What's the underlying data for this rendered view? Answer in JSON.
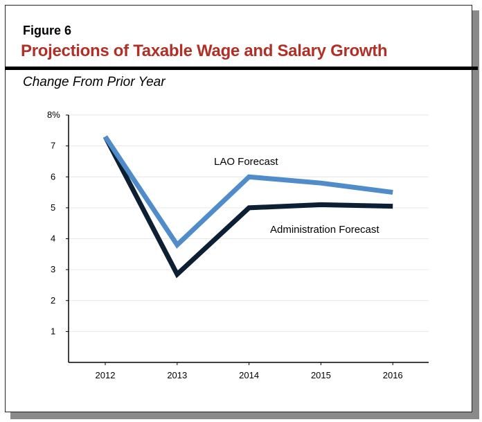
{
  "figure_label": "Figure 6",
  "title": "Projections of Taxable Wage and Salary Growth",
  "subtitle": "Change From Prior Year",
  "chart_data": {
    "type": "line",
    "title": "Projections of Taxable Wage and Salary Growth",
    "subtitle": "Change From Prior Year",
    "xlabel": "",
    "ylabel": "",
    "categories": [
      "2012",
      "2013",
      "2014",
      "2015",
      "2016"
    ],
    "ylim": [
      0,
      8
    ],
    "yticks": [
      "1",
      "2",
      "3",
      "4",
      "5",
      "6",
      "7",
      "8%"
    ],
    "grid": true,
    "series": [
      {
        "name": "LAO Forecast",
        "color": "#4f8cc9",
        "values": [
          7.3,
          3.8,
          6.0,
          5.8,
          5.5
        ]
      },
      {
        "name": "Administration Forecast",
        "color": "#0d1f33",
        "values": [
          7.3,
          2.85,
          5.0,
          5.1,
          5.05
        ]
      }
    ]
  }
}
